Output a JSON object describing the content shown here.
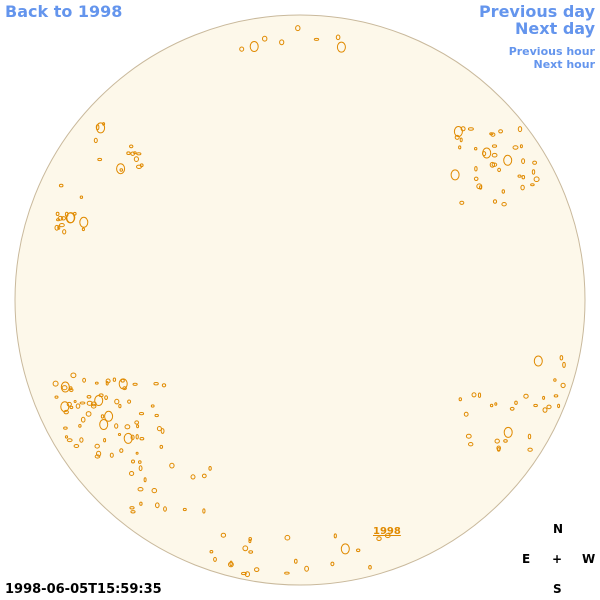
{
  "navigation": {
    "back": "Back to 1998",
    "previous_day": "Previous day",
    "next_day": "Next day",
    "previous_hour": "Previous hour",
    "next_hour": "Next hour"
  },
  "disc": {
    "year_link": "1998"
  },
  "timestamp": "1998-06-05T15:59:35",
  "compass": {
    "north": "N",
    "east": "E",
    "center": "+",
    "west": "W",
    "south": "S"
  }
}
